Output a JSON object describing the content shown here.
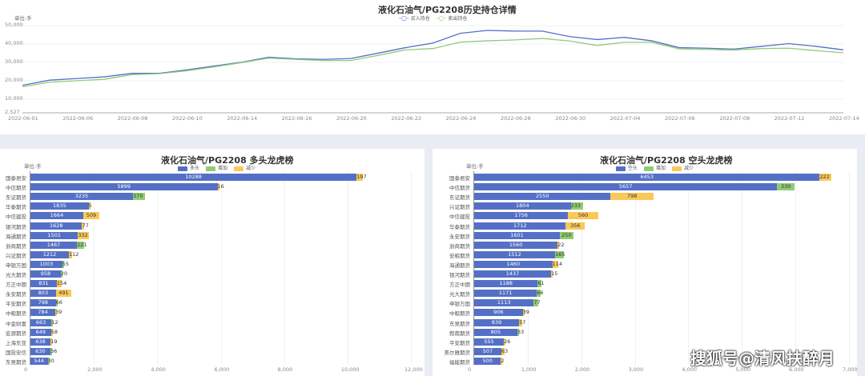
{
  "top_chart": {
    "title": "液化石油气/PG2208历史持仓详情",
    "unit": "单位:手",
    "legend": [
      {
        "name": "买入持仓",
        "color": "#5470c6"
      },
      {
        "name": "卖出持仓",
        "color": "#91cc75"
      }
    ],
    "y_ticks": [
      "50,000",
      "40,000",
      "30,000",
      "20,000",
      "10,000",
      "2,527"
    ],
    "x_ticks": [
      "2022-06-01",
      "2022-06-06",
      "2022-06-08",
      "2022-06-10",
      "2022-06-14",
      "2022-06-16",
      "2022-06-20",
      "2022-06-22",
      "2022-06-24",
      "2022-06-28",
      "2022-06-30",
      "2022-07-04",
      "2022-07-06",
      "2022-07-08",
      "2022-07-12",
      "2022-07-14"
    ]
  },
  "long_chart": {
    "title": "液化石油气/PG2208 多头龙虎榜",
    "unit": "单位:手",
    "legend": [
      {
        "name": "多头",
        "color": "#5470c6"
      },
      {
        "name": "增加",
        "color": "#91cc75"
      },
      {
        "name": "减少",
        "color": "#fac858"
      }
    ],
    "x_ticks": [
      "0",
      "2,000",
      "4,000",
      "6,000",
      "8,000",
      "10,000",
      "12,000"
    ],
    "rows": [
      {
        "name": "国泰君安",
        "value": "10288",
        "chg": "197",
        "type": "dec"
      },
      {
        "name": "中信期货",
        "value": "5899",
        "chg": "16",
        "type": "dec"
      },
      {
        "name": "东证期货",
        "value": "3235",
        "chg": "370",
        "type": "inc"
      },
      {
        "name": "华泰期货",
        "value": "1835",
        "chg": "5",
        "type": "dec"
      },
      {
        "name": "中信建投",
        "value": "1664",
        "chg": "509",
        "type": "dec"
      },
      {
        "name": "银河期货",
        "value": "1628",
        "chg": "77",
        "type": "dec"
      },
      {
        "name": "海通期货",
        "value": "1501",
        "chg": "332",
        "type": "dec"
      },
      {
        "name": "浙商期货",
        "value": "1467",
        "chg": "221",
        "type": "inc"
      },
      {
        "name": "兴证期货",
        "value": "1212",
        "chg": "112",
        "type": "dec"
      },
      {
        "name": "申银万国",
        "value": "1003",
        "chg": "55",
        "type": "inc"
      },
      {
        "name": "光大期货",
        "value": "958",
        "chg": "20",
        "type": "inc"
      },
      {
        "name": "方正中期",
        "value": "831",
        "chg": "154",
        "type": "dec"
      },
      {
        "name": "永安期货",
        "value": "803",
        "chg": "491",
        "type": "dec"
      },
      {
        "name": "平安期货",
        "value": "798",
        "chg": "66",
        "type": "inc"
      },
      {
        "name": "中粮期货",
        "value": "784",
        "chg": "39",
        "type": "dec"
      },
      {
        "name": "中金财富",
        "value": "663",
        "chg": "12",
        "type": "inc"
      },
      {
        "name": "宏源期货",
        "value": "649",
        "chg": "58",
        "type": "dec"
      },
      {
        "name": "上海东亚",
        "value": "638",
        "chg": "19",
        "type": "dec"
      },
      {
        "name": "国投安信",
        "value": "630",
        "chg": "36",
        "type": "inc"
      },
      {
        "name": "东吴期货",
        "value": "544",
        "chg": "30",
        "type": "inc"
      }
    ]
  },
  "short_chart": {
    "title": "液化石油气/PG2208 空头龙虎榜",
    "unit": "单位:手",
    "legend": [
      {
        "name": "空头",
        "color": "#5470c6"
      },
      {
        "name": "增加",
        "color": "#91cc75"
      },
      {
        "name": "减少",
        "color": "#fac858"
      }
    ],
    "x_ticks": [
      "0",
      "1,000",
      "2,000",
      "3,000",
      "4,000",
      "5,000",
      "6,000",
      "7,000"
    ],
    "rows": [
      {
        "name": "国泰君安",
        "value": "6453",
        "chg": "222",
        "type": "dec"
      },
      {
        "name": "中信期货",
        "value": "5657",
        "chg": "330",
        "type": "inc"
      },
      {
        "name": "东证期货",
        "value": "2550",
        "chg": "798",
        "type": "dec"
      },
      {
        "name": "兴证期货",
        "value": "1804",
        "chg": "233",
        "type": "inc"
      },
      {
        "name": "中信建投",
        "value": "1756",
        "chg": "560",
        "type": "dec"
      },
      {
        "name": "华泰期货",
        "value": "1712",
        "chg": "356",
        "type": "dec"
      },
      {
        "name": "永安期货",
        "value": "1601",
        "chg": "250",
        "type": "inc"
      },
      {
        "name": "浙商期货",
        "value": "1560",
        "chg": "22",
        "type": "dec"
      },
      {
        "name": "安粮期货",
        "value": "1512",
        "chg": "165",
        "type": "inc"
      },
      {
        "name": "海通期货",
        "value": "1460",
        "chg": "114",
        "type": "dec"
      },
      {
        "name": "银河期货",
        "value": "1437",
        "chg": "15",
        "type": "dec"
      },
      {
        "name": "方正中期",
        "value": "1188",
        "chg": "61",
        "type": "inc"
      },
      {
        "name": "光大期货",
        "value": "1171",
        "chg": "66",
        "type": "inc"
      },
      {
        "name": "申银万国",
        "value": "1113",
        "chg": "77",
        "type": "inc"
      },
      {
        "name": "中粮期货",
        "value": "906",
        "chg": "39",
        "type": "dec"
      },
      {
        "name": "东吴期货",
        "value": "839",
        "chg": "57",
        "type": "dec"
      },
      {
        "name": "叙南期货",
        "value": "805",
        "chg": "33",
        "type": "inc"
      },
      {
        "name": "平安期货",
        "value": "555",
        "chg": "26",
        "type": "dec"
      },
      {
        "name": "美尔雅期货",
        "value": "507",
        "chg": "63",
        "type": "dec"
      },
      {
        "name": "福能期货",
        "value": "500",
        "chg": "2",
        "type": "dec"
      }
    ]
  },
  "watermark": "搜狐号@清风扶醉月",
  "chart_data": [
    {
      "type": "line",
      "title": "液化石油气/PG2208历史持仓详情",
      "ylabel": "单位:手",
      "ylim": [
        2527,
        50000
      ],
      "x": [
        "06-01",
        "06-02",
        "06-06",
        "06-07",
        "06-08",
        "06-09",
        "06-10",
        "06-13",
        "06-14",
        "06-15",
        "06-16",
        "06-17",
        "06-20",
        "06-21",
        "06-22",
        "06-23",
        "06-24",
        "06-27",
        "06-28",
        "06-29",
        "06-30",
        "07-01",
        "07-04",
        "07-05",
        "07-06",
        "07-07",
        "07-08",
        "07-11",
        "07-12",
        "07-13",
        "07-14"
      ],
      "series": [
        {
          "name": "买入持仓",
          "values": [
            17500,
            20300,
            21200,
            22100,
            24000,
            24000,
            25900,
            28000,
            30000,
            32800,
            31900,
            31600,
            32100,
            35000,
            38000,
            40500,
            45800,
            47400,
            47000,
            47000,
            44000,
            42400,
            43600,
            41700,
            38000,
            37700,
            37200,
            38700,
            40200,
            38700,
            36800
          ]
        },
        {
          "name": "卖出持仓",
          "values": [
            16700,
            19200,
            20000,
            20800,
            23300,
            23800,
            25400,
            27500,
            29800,
            32300,
            31600,
            31000,
            31000,
            33800,
            36800,
            37500,
            41000,
            41700,
            42200,
            43000,
            41600,
            39200,
            40900,
            40900,
            37300,
            37000,
            36700,
            37500,
            37700,
            36400,
            35200
          ]
        }
      ],
      "legend_position": "top-right",
      "grid": true
    },
    {
      "type": "bar",
      "title": "液化石油气/PG2208 多头龙虎榜",
      "orientation": "horizontal",
      "stacked": true,
      "categories": [
        "国泰君安",
        "中信期货",
        "东证期货",
        "华泰期货",
        "中信建投",
        "银河期货",
        "海通期货",
        "浙商期货",
        "兴证期货",
        "申银万国",
        "光大期货",
        "方正中期",
        "永安期货",
        "平安期货",
        "中粮期货",
        "中金财富",
        "宏源期货",
        "上海东亚",
        "国投安信",
        "东吴期货"
      ],
      "series": [
        {
          "name": "多头",
          "values": [
            10288,
            5899,
            3235,
            1835,
            1664,
            1628,
            1501,
            1467,
            1212,
            1003,
            958,
            831,
            803,
            798,
            784,
            663,
            649,
            638,
            630,
            544
          ]
        },
        {
          "name": "增加",
          "values": [
            0,
            0,
            370,
            0,
            0,
            0,
            0,
            221,
            0,
            55,
            20,
            0,
            0,
            66,
            0,
            12,
            0,
            0,
            36,
            30
          ]
        },
        {
          "name": "减少",
          "values": [
            197,
            16,
            0,
            5,
            509,
            77,
            332,
            0,
            112,
            0,
            0,
            154,
            491,
            0,
            39,
            0,
            58,
            19,
            0,
            0
          ]
        }
      ],
      "xlim": [
        0,
        12000
      ]
    },
    {
      "type": "bar",
      "title": "液化石油气/PG2208 空头龙虎榜",
      "orientation": "horizontal",
      "stacked": true,
      "categories": [
        "国泰君安",
        "中信期货",
        "东证期货",
        "兴证期货",
        "中信建投",
        "华泰期货",
        "永安期货",
        "浙商期货",
        "安粮期货",
        "海通期货",
        "银河期货",
        "方正中期",
        "光大期货",
        "申银万国",
        "中粮期货",
        "东吴期货",
        "叙南期货",
        "平安期货",
        "美尔雅期货",
        "福能期货"
      ],
      "series": [
        {
          "name": "空头",
          "values": [
            6453,
            5657,
            2550,
            1804,
            1756,
            1712,
            1601,
            1560,
            1512,
            1460,
            1437,
            1188,
            1171,
            1113,
            906,
            839,
            805,
            555,
            507,
            500
          ]
        },
        {
          "name": "增加",
          "values": [
            0,
            330,
            0,
            233,
            0,
            0,
            250,
            0,
            165,
            0,
            0,
            61,
            66,
            77,
            0,
            0,
            33,
            0,
            0,
            0
          ]
        },
        {
          "name": "减少",
          "values": [
            222,
            0,
            798,
            0,
            560,
            356,
            0,
            22,
            0,
            114,
            15,
            0,
            0,
            0,
            39,
            57,
            0,
            26,
            63,
            2
          ]
        }
      ],
      "xlim": [
        0,
        7000
      ]
    }
  ]
}
